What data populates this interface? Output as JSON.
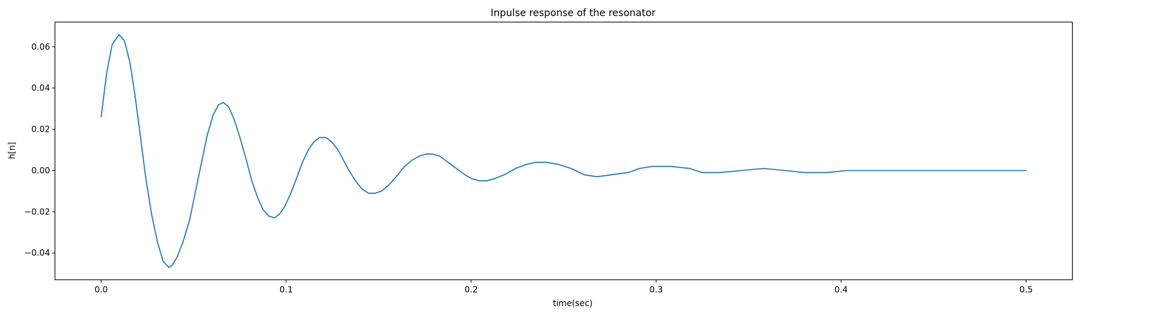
{
  "chart_data": {
    "type": "line",
    "title": "Inpulse response of the resonator",
    "xlabel": "time(sec)",
    "ylabel": "h[n]",
    "xlim": [
      -0.025,
      0.525
    ],
    "ylim": [
      -0.053,
      0.072
    ],
    "xticks": [
      0.0,
      0.1,
      0.2,
      0.3,
      0.4,
      0.5
    ],
    "xtick_labels": [
      "0.0",
      "0.1",
      "0.2",
      "0.3",
      "0.4",
      "0.5"
    ],
    "yticks": [
      -0.04,
      -0.02,
      0.0,
      0.02,
      0.04,
      0.06
    ],
    "ytick_labels": [
      "−0.04",
      "−0.02",
      "0.00",
      "0.02",
      "0.04",
      "0.06"
    ],
    "grid": false,
    "series": [
      {
        "color": "#1f77b4",
        "x": [
          0.0,
          0.0029,
          0.0059,
          0.0096,
          0.0125,
          0.0154,
          0.0182,
          0.021,
          0.024,
          0.0272,
          0.0305,
          0.0335,
          0.0365,
          0.0383,
          0.041,
          0.0441,
          0.0478,
          0.051,
          0.0545,
          0.0573,
          0.0605,
          0.0635,
          0.066,
          0.0688,
          0.0718,
          0.075,
          0.0782,
          0.0814,
          0.0845,
          0.0875,
          0.0905,
          0.0937,
          0.0965,
          0.0995,
          0.1025,
          0.1055,
          0.1088,
          0.112,
          0.115,
          0.118,
          0.1215,
          0.1245,
          0.128,
          0.131,
          0.134,
          0.1375,
          0.141,
          0.1445,
          0.148,
          0.1515,
          0.1555,
          0.1595,
          0.164,
          0.168,
          0.172,
          0.1755,
          0.179,
          0.183,
          0.1875,
          0.192,
          0.1965,
          0.2005,
          0.2045,
          0.2085,
          0.2125,
          0.218,
          0.224,
          0.23,
          0.235,
          0.2405,
          0.247,
          0.254,
          0.261,
          0.268,
          0.276,
          0.285,
          0.291,
          0.298,
          0.308,
          0.318,
          0.325,
          0.334,
          0.346,
          0.358,
          0.37,
          0.38,
          0.392,
          0.403,
          0.415,
          0.428,
          0.44,
          0.456,
          0.47,
          0.485,
          0.5
        ],
        "y": [
          0.026,
          0.047,
          0.061,
          0.066,
          0.063,
          0.053,
          0.037,
          0.018,
          -0.003,
          -0.021,
          -0.035,
          -0.044,
          -0.047,
          -0.046,
          -0.042,
          -0.035,
          -0.024,
          -0.01,
          0.005,
          0.017,
          0.027,
          0.032,
          0.033,
          0.031,
          0.025,
          0.016,
          0.006,
          -0.005,
          -0.013,
          -0.019,
          -0.022,
          -0.023,
          -0.021,
          -0.017,
          -0.011,
          -0.004,
          0.004,
          0.01,
          0.014,
          0.016,
          0.016,
          0.014,
          0.01,
          0.005,
          0.0,
          -0.005,
          -0.009,
          -0.011,
          -0.011,
          -0.01,
          -0.007,
          -0.003,
          0.002,
          0.005,
          0.007,
          0.008,
          0.008,
          0.007,
          0.004,
          0.001,
          -0.002,
          -0.004,
          -0.005,
          -0.005,
          -0.004,
          -0.002,
          0.001,
          0.003,
          0.004,
          0.004,
          0.003,
          0.001,
          -0.002,
          -0.003,
          -0.002,
          -0.001,
          0.001,
          0.002,
          0.002,
          0.001,
          -0.001,
          -0.001,
          0.0,
          0.001,
          0.0,
          -0.001,
          -0.001,
          0.0,
          0.0,
          0.0,
          0.0,
          0.0,
          0.0,
          0.0,
          0.0
        ]
      }
    ]
  }
}
